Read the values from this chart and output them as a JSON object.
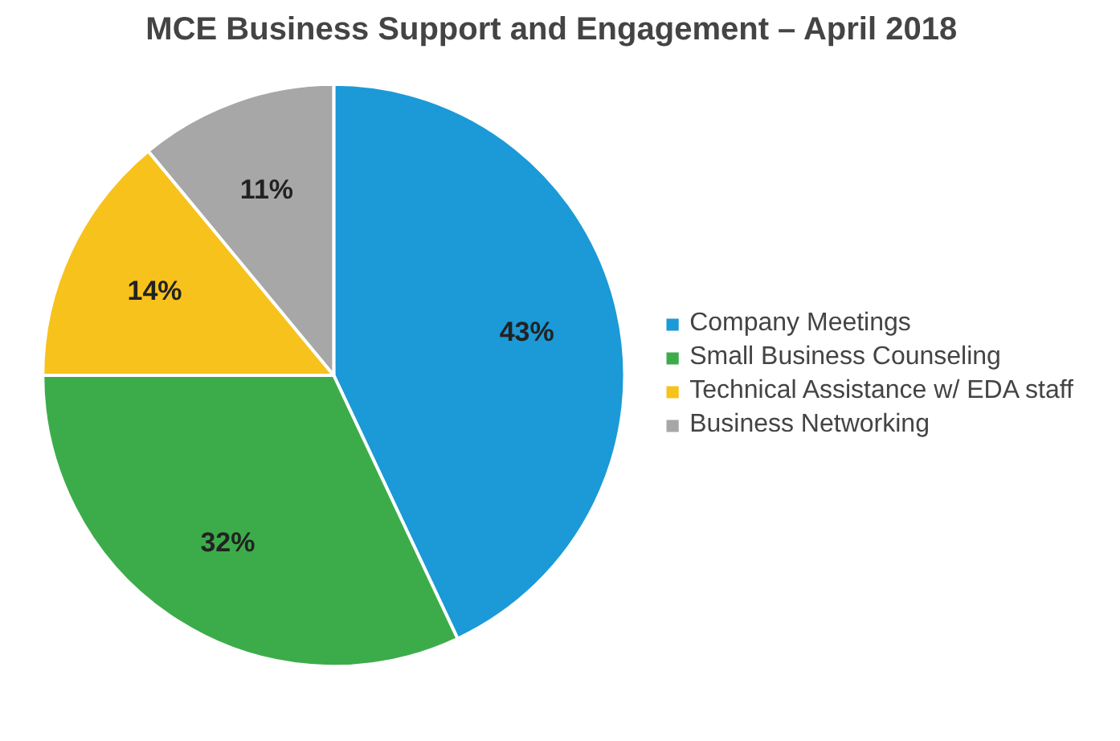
{
  "chart_data": {
    "type": "pie",
    "title": "MCE Business Support and Engagement – April 2018",
    "categories": [
      "Company Meetings",
      "Small Business Counseling",
      "Technical Assistance w/ EDA staff",
      "Business Networking"
    ],
    "values": [
      43,
      32,
      14,
      11
    ],
    "value_labels": [
      "43%",
      "32%",
      "14%",
      "11%"
    ],
    "colors": [
      "#1b9ad7",
      "#3cac4a",
      "#f7c21c",
      "#a7a7a7"
    ],
    "legend": "right"
  }
}
